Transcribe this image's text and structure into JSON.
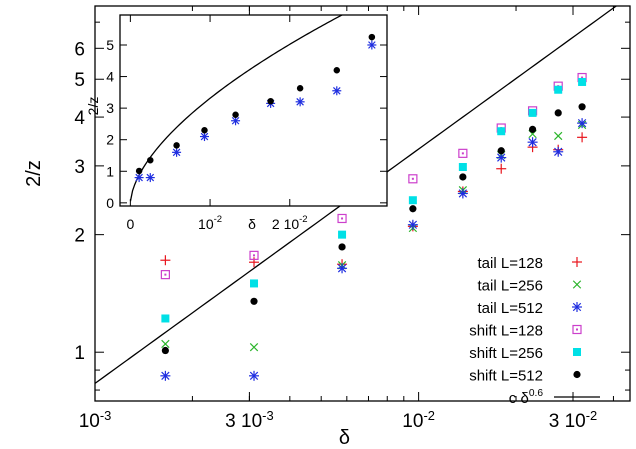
{
  "chart_data": [
    {
      "type": "scatter",
      "xlabel": "δ",
      "ylabel": "2/z",
      "xscale": "log",
      "yscale": "log",
      "xlim": [
        0.001,
        0.045
      ],
      "ylim": [
        0.75,
        7.7
      ],
      "xticks": [
        {
          "value": 0.001,
          "base": "10",
          "exp": "-3"
        },
        {
          "value": 0.003,
          "base": "3 10",
          "exp": "-3"
        },
        {
          "value": 0.01,
          "base": "10",
          "exp": "-2"
        },
        {
          "value": 0.03,
          "base": "3 10",
          "exp": "-2"
        }
      ],
      "yticks": [
        {
          "value": 1,
          "label": "1"
        },
        {
          "value": 2,
          "label": "2"
        },
        {
          "value": 3,
          "label": "3"
        },
        {
          "value": 4,
          "label": "4"
        },
        {
          "value": 5,
          "label": "5"
        },
        {
          "value": 6,
          "label": "6"
        }
      ],
      "legend_position": "bottom-right",
      "series": [
        {
          "name": "tail L=128",
          "marker": "plus",
          "color": "#e8141c",
          "x": [
            0.00165,
            0.0031,
            0.0058,
            0.0096,
            0.0137,
            0.018,
            0.0225,
            0.027,
            0.032
          ],
          "y": [
            1.72,
            1.7,
            1.68,
            2.1,
            2.58,
            2.95,
            3.35,
            3.3,
            3.55
          ]
        },
        {
          "name": "tail L=256",
          "marker": "cross",
          "color": "#2bb52b",
          "x": [
            0.00165,
            0.0031,
            0.0058,
            0.0096,
            0.0137,
            0.018,
            0.0225,
            0.027,
            0.032
          ],
          "y": [
            1.05,
            1.03,
            1.67,
            2.08,
            2.6,
            3.2,
            3.62,
            3.58,
            3.82
          ]
        },
        {
          "name": "tail L=512",
          "marker": "star",
          "color": "#1f2ee0",
          "x": [
            0.00165,
            0.0031,
            0.0058,
            0.0096,
            0.0137,
            0.018,
            0.0225,
            0.027,
            0.032
          ],
          "y": [
            0.87,
            0.87,
            1.64,
            2.12,
            2.55,
            3.15,
            3.45,
            3.26,
            3.86
          ]
        },
        {
          "name": "shift L=128",
          "marker": "square-dot",
          "color": "#cc3fcc",
          "x": [
            0.00165,
            0.0031,
            0.0058,
            0.0096,
            0.0137,
            0.018,
            0.0225,
            0.027,
            0.032
          ],
          "y": [
            1.58,
            1.77,
            2.2,
            2.78,
            3.23,
            3.75,
            4.15,
            4.8,
            5.05
          ]
        },
        {
          "name": "shift L=256",
          "marker": "square",
          "color": "#00e0e6",
          "x": [
            0.00165,
            0.0031,
            0.0058,
            0.0096,
            0.0137,
            0.018,
            0.0225,
            0.027,
            0.032
          ],
          "y": [
            1.22,
            1.5,
            2.0,
            2.45,
            2.98,
            3.68,
            4.1,
            4.7,
            4.92
          ]
        },
        {
          "name": "shift L=512",
          "marker": "circle",
          "color": "#000000",
          "x": [
            0.00165,
            0.0031,
            0.0058,
            0.0096,
            0.0137,
            0.018,
            0.0225,
            0.027,
            0.032
          ],
          "y": [
            1.01,
            1.35,
            1.86,
            2.33,
            2.81,
            3.28,
            3.72,
            4.1,
            4.25
          ]
        },
        {
          "name": "c δ^0.6",
          "type": "line",
          "color": "#000000",
          "c": 52.5,
          "exponent": 0.6
        }
      ],
      "legend_label": {
        "base": "c δ",
        "exp": "0.6"
      }
    },
    {
      "type": "scatter",
      "position": "inset-top-left",
      "xlabel": "δ",
      "ylabel": "2/z",
      "xscale": "linear",
      "yscale": "linear",
      "xlim": [
        -0.0013,
        0.0322
      ],
      "ylim": [
        -0.1,
        5.95
      ],
      "xticks": [
        {
          "value": 0,
          "base": "0",
          "exp": ""
        },
        {
          "value": 0.01,
          "base": "10",
          "exp": "-2"
        },
        {
          "value": 0.02,
          "base": "2 10",
          "exp": "-2"
        }
      ],
      "yticks": [
        {
          "value": 0,
          "label": "0"
        },
        {
          "value": 1,
          "label": "1"
        },
        {
          "value": 2,
          "label": "2"
        },
        {
          "value": 3,
          "label": "3"
        },
        {
          "value": 4,
          "label": "4"
        },
        {
          "value": 5,
          "label": "5"
        }
      ],
      "series": [
        {
          "name": "tail L=512",
          "marker": "star",
          "color": "#1f2ee0",
          "x": [
            0.0011,
            0.0025,
            0.0058,
            0.0093,
            0.0132,
            0.0176,
            0.0213,
            0.0259,
            0.0303
          ],
          "y": [
            0.8,
            0.8,
            1.6,
            2.1,
            2.6,
            3.15,
            3.2,
            3.55,
            5.0
          ]
        },
        {
          "name": "shift L=512",
          "marker": "circle",
          "color": "#000000",
          "x": [
            0.0011,
            0.0025,
            0.0058,
            0.0093,
            0.0132,
            0.0176,
            0.0213,
            0.0259,
            0.0303
          ],
          "y": [
            1.01,
            1.35,
            1.82,
            2.3,
            2.79,
            3.22,
            3.63,
            4.2,
            5.25
          ]
        },
        {
          "name": "c δ^0.6",
          "type": "line",
          "color": "#000000",
          "c": 52.5,
          "exponent": 0.6
        }
      ]
    }
  ]
}
